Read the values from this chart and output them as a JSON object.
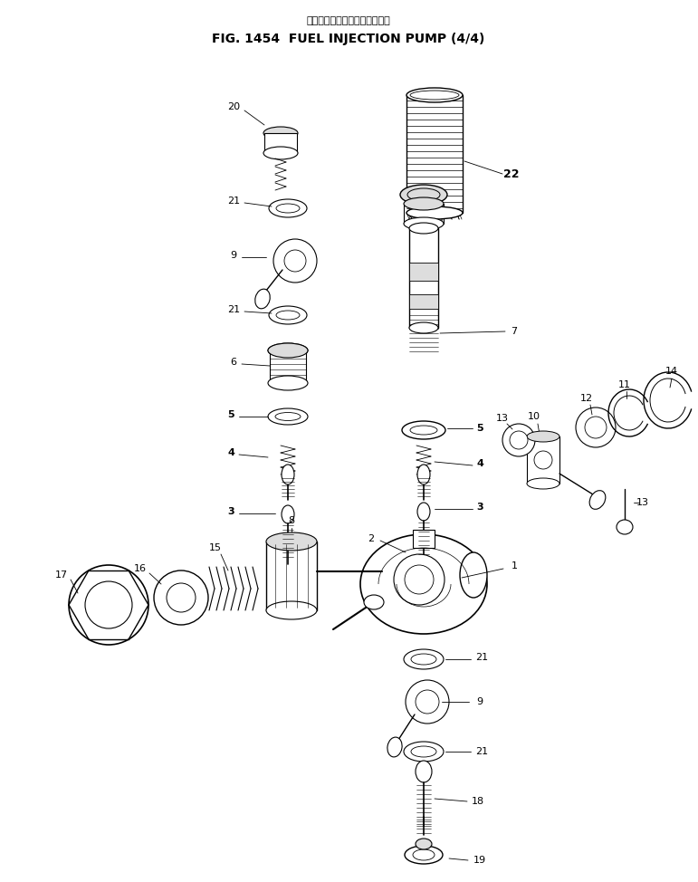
{
  "title_japanese": "フェルインジェクションポンプ",
  "title_english": "FIG. 1454  FUEL INJECTION PUMP (4/4)",
  "bg_color": "#ffffff",
  "fg_color": "#000000",
  "title_fontsize": 10,
  "subtitle_fontsize": 8,
  "label_fontsize": 8
}
